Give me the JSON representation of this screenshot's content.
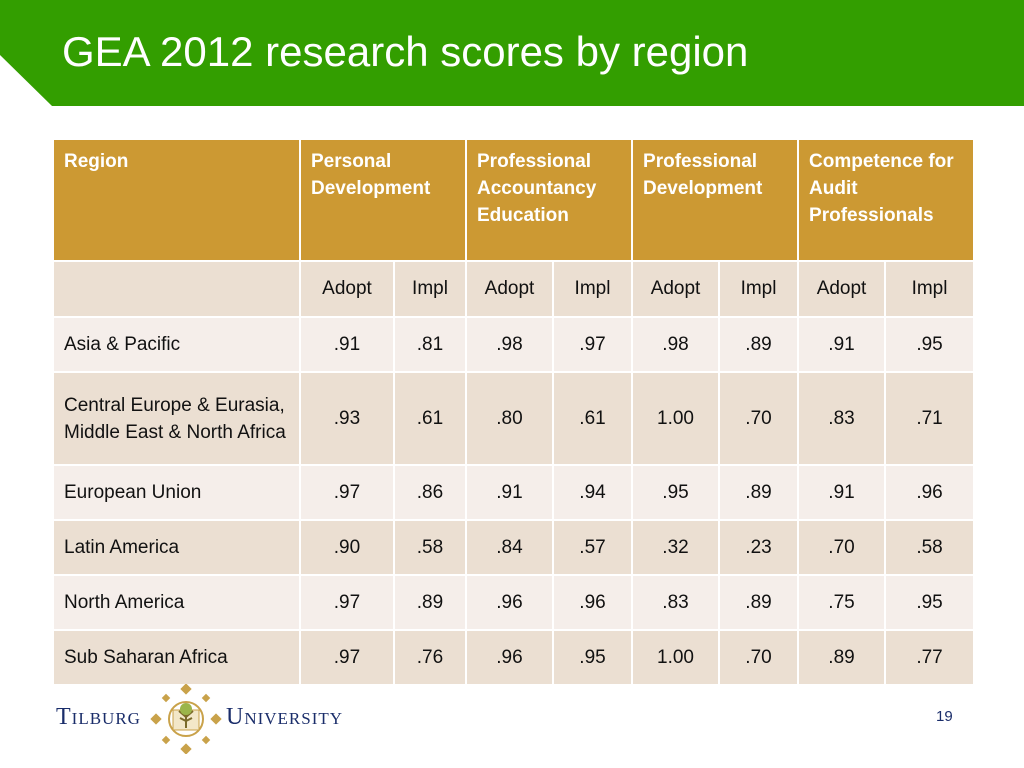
{
  "slide": {
    "title": "GEA 2012 research scores by region",
    "page_number": "19"
  },
  "colors": {
    "title_bar": "#339e00",
    "header": "#cc9933",
    "row_light": "#f5eeea",
    "row_dark": "#ebdfd2",
    "logo_text": "#1a2d6a",
    "logo_gold": "#c9a24a"
  },
  "table": {
    "headers": [
      "Region",
      "Personal Development",
      "Professional Accountancy Education",
      "Professional Development",
      "Competence for Audit Professionals"
    ],
    "subheaders": [
      "",
      "Adopt",
      "Impl",
      "Adopt",
      "Impl",
      "Adopt",
      "Impl",
      "Adopt",
      "Impl"
    ],
    "rows": [
      {
        "region": "Asia & Pacific",
        "values": [
          ".91",
          ".81",
          ".98",
          ".97",
          ".98",
          ".89",
          ".91",
          ".95"
        ]
      },
      {
        "region": "Central Europe & Eurasia, Middle East & North Africa",
        "values": [
          ".93",
          ".61",
          ".80",
          ".61",
          "1.00",
          ".70",
          ".83",
          ".71"
        ]
      },
      {
        "region": "European Union",
        "values": [
          ".97",
          ".86",
          ".91",
          ".94",
          ".95",
          ".89",
          ".91",
          ".96"
        ]
      },
      {
        "region": "Latin America",
        "values": [
          ".90",
          ".58",
          ".84",
          ".57",
          ".32",
          ".23",
          ".70",
          ".58"
        ]
      },
      {
        "region": "North America",
        "values": [
          ".97",
          ".89",
          ".96",
          ".96",
          ".83",
          ".89",
          ".75",
          ".95"
        ]
      },
      {
        "region": "Sub Saharan Africa",
        "values": [
          ".97",
          ".76",
          ".96",
          ".95",
          "1.00",
          ".70",
          ".89",
          ".77"
        ]
      }
    ]
  },
  "logo": {
    "left_word": "Tilburg",
    "right_word": "University",
    "icon": "tilburg-emblem-icon"
  }
}
